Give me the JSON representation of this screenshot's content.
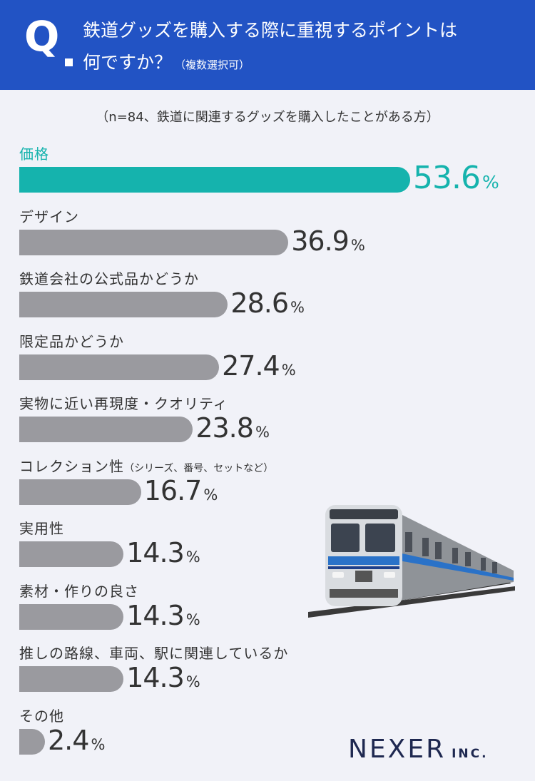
{
  "header": {
    "q_mark": "Q",
    "line1": "鉄道グッズを購入する際に重視するポイントは",
    "line2": "何ですか？",
    "note": "（複数選択可）"
  },
  "subtitle": "（n=84、鉄道に関連するグッズを購入したことがある方）",
  "chart_data": {
    "type": "bar",
    "orientation": "horizontal",
    "unit": "%",
    "categories": [
      "価格",
      "デザイン",
      "鉄道会社の公式品かどうか",
      "限定品かどうか",
      "実物に近い再現度・クオリティ",
      "コレクション性",
      "実用性",
      "素材・作りの良さ",
      "推しの路線、車両、駅に関連しているか",
      "その他"
    ],
    "category_notes": [
      "",
      "",
      "",
      "",
      "",
      "（シリーズ、番号、セットなど）",
      "",
      "",
      "",
      ""
    ],
    "values": [
      53.6,
      36.9,
      28.6,
      27.4,
      23.8,
      16.7,
      14.3,
      14.3,
      14.3,
      2.4
    ],
    "value_labels": [
      "53.6",
      "36.9",
      "28.6",
      "27.4",
      "23.8",
      "16.7",
      "14.3",
      "14.3",
      "14.3",
      "2.4"
    ],
    "highlight_color": "#15b3ad",
    "bar_color": "#9a9a9f",
    "grid": false
  },
  "brand": {
    "logo_main": "NEXER",
    "logo_sub": "INC."
  },
  "colors": {
    "header_bg": "#2253c4",
    "page_bg": "#f1f2f8",
    "accent": "#15b3ad"
  }
}
